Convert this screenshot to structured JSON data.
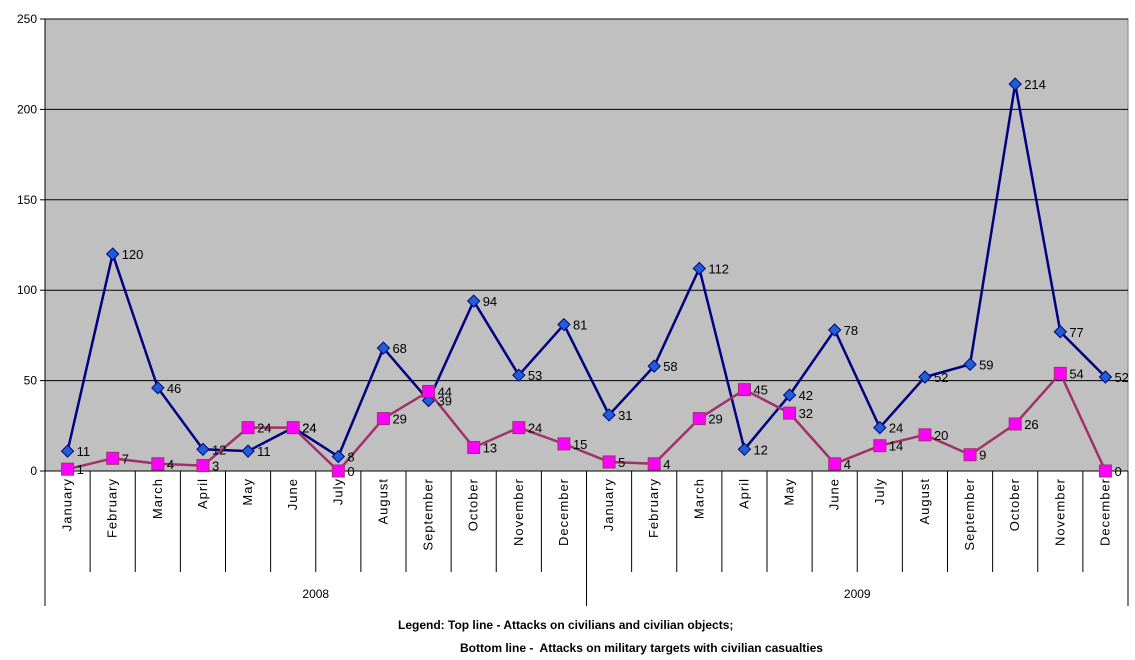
{
  "chart_data": {
    "type": "line",
    "ylim": [
      0,
      250
    ],
    "yticks": [
      0,
      50,
      100,
      150,
      200,
      250
    ],
    "grid": true,
    "categories": [
      "January",
      "February",
      "March",
      "April",
      "May",
      "June",
      "July",
      "August",
      "September",
      "October",
      "November",
      "December",
      "January",
      "February",
      "March",
      "April",
      "May",
      "June",
      "July",
      "August",
      "September",
      "October",
      "November",
      "December"
    ],
    "groups": [
      {
        "label": "2008",
        "count": 12
      },
      {
        "label": "2009",
        "count": 12
      }
    ],
    "series": [
      {
        "color": "#000080",
        "marker_color": "#1f5fd6",
        "marker": "diamond",
        "values": [
          11,
          120,
          46,
          12,
          11,
          24,
          8,
          68,
          39,
          94,
          53,
          81,
          31,
          58,
          112,
          12,
          42,
          78,
          24,
          52,
          59,
          214,
          77,
          52
        ]
      },
      {
        "color": "#a0306a",
        "marker_color": "#ff00ff",
        "marker": "square",
        "values": [
          1,
          7,
          4,
          3,
          24,
          24,
          0,
          29,
          44,
          13,
          24,
          15,
          5,
          4,
          29,
          45,
          32,
          4,
          14,
          20,
          9,
          26,
          54,
          0
        ]
      }
    ],
    "legend_text": {
      "line1": "Legend: Top line - Attacks on civilians and civilian objects;",
      "line2": "Bottom line -  Attacks on military targets with civilian casualties"
    },
    "plot_bg": "#c0c0c0"
  }
}
